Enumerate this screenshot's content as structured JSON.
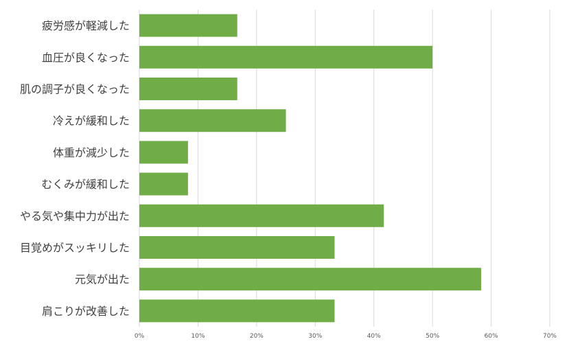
{
  "chart_data": {
    "type": "bar",
    "orientation": "horizontal",
    "categories": [
      "疲労感が軽減した",
      "血圧が良くなった",
      "肌の調子が良くなった",
      "冷えが緩和した",
      "体重が減少した",
      "むくみが緩和した",
      "やる気や集中力が出た",
      "目覚めがスッキリした",
      "元気が出た",
      "肩こりが改善した"
    ],
    "values": [
      16.7,
      50.0,
      16.7,
      25.0,
      8.3,
      8.3,
      41.7,
      33.3,
      58.3,
      33.3
    ],
    "xlim": [
      0,
      70
    ],
    "x_ticks": [
      "0%",
      "10%",
      "20%",
      "30%",
      "40%",
      "50%",
      "60%",
      "70%"
    ],
    "grid": true,
    "bar_color": "#70ad47",
    "grid_color": "#d9d9d9",
    "title": "",
    "xlabel": "",
    "ylabel": ""
  }
}
